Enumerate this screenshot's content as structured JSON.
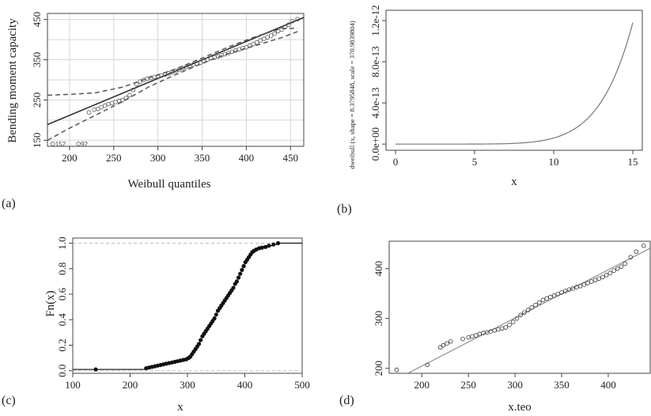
{
  "colors": {
    "ink": "#222222",
    "frame": "#444444",
    "grid": "#d6d6d6",
    "band": "#555555",
    "ecdf_ref": "#bdbdbd",
    "curve": "#777777"
  },
  "chart_data": [
    {
      "id": "a",
      "panel_label": "(a)",
      "type": "scatter",
      "xlabel": "Weibull quantiles",
      "ylabel": "Bending moment capacity",
      "xlim": [
        175,
        465
      ],
      "ylim": [
        135,
        465
      ],
      "xticks": [
        200,
        250,
        300,
        350,
        400,
        450
      ],
      "yticks": [
        150,
        250,
        350,
        450
      ],
      "grid": true,
      "annotations": [
        {
          "text": "152",
          "x": 181,
          "y": 141
        },
        {
          "text": "92",
          "x": 210,
          "y": 141
        }
      ],
      "reference_line": {
        "x": [
          175,
          465
        ],
        "y": [
          189,
          455
        ]
      },
      "confidence_band": {
        "x": [
          175,
          200,
          230,
          260,
          290,
          320,
          350,
          380,
          410,
          440,
          458
        ],
        "upper": [
          262,
          264,
          268,
          282,
          305,
          327,
          354,
          382,
          407,
          428,
          428
        ],
        "lower": [
          150,
          180,
          213,
          246,
          283,
          313,
          341,
          366,
          385,
          405,
          420
        ]
      },
      "points": {
        "x": [
          181,
          210,
          222,
          228,
          232,
          236,
          240,
          244,
          248,
          252,
          256,
          260,
          264,
          268,
          272,
          276,
          280,
          284,
          288,
          292,
          296,
          300,
          304,
          308,
          312,
          316,
          320,
          324,
          328,
          332,
          336,
          340,
          344,
          348,
          352,
          356,
          360,
          364,
          368,
          372,
          376,
          380,
          384,
          388,
          392,
          396,
          400,
          404,
          408,
          412,
          416,
          420,
          424,
          428,
          432,
          436,
          440,
          444,
          448,
          452,
          458
        ],
        "y": [
          141,
          141,
          219,
          226,
          228,
          232,
          236,
          240,
          242,
          245,
          248,
          250,
          255,
          262,
          275,
          289,
          296,
          300,
          303,
          305,
          307,
          309,
          311,
          313,
          316,
          319,
          322,
          325,
          329,
          332,
          335,
          338,
          341,
          343,
          346,
          350,
          354,
          356,
          358,
          361,
          364,
          367,
          370,
          373,
          376,
          379,
          381,
          385,
          389,
          393,
          398,
          402,
          406,
          410,
          415,
          421,
          425,
          431,
          437,
          446,
          451
        ]
      }
    },
    {
      "id": "b",
      "panel_label": "(b)",
      "type": "line",
      "xlabel": "x",
      "ylabel": "dweibull (x, shape = 8.3795848, scale = 370.9839804)",
      "xlim": [
        -0.6,
        15.6
      ],
      "ylim": [
        -6e-14,
        1.3e-12
      ],
      "xticks": [
        0,
        5,
        10,
        15
      ],
      "ytick_values": [
        0,
        4e-13,
        8e-13,
        1.2e-12
      ],
      "ytick_labels": [
        "0.0e+00",
        "4.0e-13",
        "8.0e-13",
        "1.2e-12"
      ],
      "grid": false,
      "function": {
        "name": "dweibull",
        "shape": 8.3795848,
        "scale": 370.9839804,
        "x_from": 0,
        "x_to": 15
      }
    },
    {
      "id": "c",
      "panel_label": "(c)",
      "type": "scatter",
      "xlabel": "x",
      "ylabel": "Fn(x)",
      "xlim": [
        100,
        500
      ],
      "ylim": [
        -0.02,
        1.04
      ],
      "xticks": [
        100,
        200,
        300,
        400,
        500
      ],
      "yticks": [
        0.0,
        0.2,
        0.4,
        0.6,
        0.8,
        1.0
      ],
      "ytick_labels": [
        "0.0",
        "0.2",
        "0.4",
        "0.6",
        "0.8",
        "1.0"
      ],
      "grid": false,
      "reference_lines_y": [
        0,
        1
      ],
      "ecdf_points": {
        "x": [
          140,
          228,
          233,
          238,
          243,
          248,
          253,
          258,
          263,
          268,
          273,
          278,
          283,
          288,
          293,
          298,
          302,
          305,
          308,
          311,
          314,
          317,
          320,
          323,
          326,
          329,
          332,
          335,
          338,
          341,
          344,
          347,
          350,
          353,
          356,
          359,
          362,
          365,
          368,
          371,
          374,
          377,
          380,
          383,
          386,
          389,
          392,
          395,
          398,
          401,
          404,
          407,
          410,
          413,
          416,
          420,
          425,
          430,
          436,
          442,
          450,
          458
        ],
        "y": [
          0.01,
          0.02,
          0.025,
          0.03,
          0.035,
          0.04,
          0.045,
          0.05,
          0.055,
          0.06,
          0.065,
          0.07,
          0.075,
          0.08,
          0.085,
          0.09,
          0.1,
          0.11,
          0.13,
          0.15,
          0.17,
          0.19,
          0.21,
          0.24,
          0.27,
          0.29,
          0.31,
          0.33,
          0.35,
          0.37,
          0.39,
          0.41,
          0.44,
          0.47,
          0.49,
          0.51,
          0.53,
          0.55,
          0.57,
          0.59,
          0.61,
          0.63,
          0.65,
          0.68,
          0.7,
          0.73,
          0.76,
          0.79,
          0.82,
          0.85,
          0.87,
          0.89,
          0.91,
          0.93,
          0.94,
          0.95,
          0.96,
          0.965,
          0.97,
          0.98,
          0.99,
          1.0
        ]
      }
    },
    {
      "id": "d",
      "panel_label": "(d)",
      "type": "scatter",
      "xlabel": "x.teo",
      "ylabel": "",
      "xlim": [
        165,
        445
      ],
      "ylim": [
        190,
        455
      ],
      "xticks": [
        200,
        250,
        300,
        350,
        400
      ],
      "yticks": [
        200,
        300,
        400
      ],
      "grid": false,
      "reference_line": {
        "x": [
          185,
          445
        ],
        "y": [
          190,
          441
        ]
      },
      "points": {
        "x": [
          173,
          206,
          220,
          223,
          227,
          231,
          244,
          250,
          254,
          258,
          262,
          266,
          270,
          274,
          278,
          282,
          286,
          290,
          294,
          298,
          302,
          306,
          310,
          314,
          318,
          322,
          326,
          330,
          334,
          338,
          342,
          346,
          350,
          354,
          358,
          362,
          366,
          370,
          374,
          378,
          382,
          386,
          390,
          394,
          398,
          402,
          406,
          410,
          414,
          418,
          424,
          430,
          438
        ],
        "y": [
          197,
          207,
          242,
          246,
          250,
          254,
          259,
          262,
          264,
          266,
          269,
          271,
          272,
          274,
          276,
          278,
          280,
          282,
          287,
          293,
          300,
          307,
          312,
          317,
          322,
          327,
          332,
          337,
          340,
          343,
          346,
          349,
          352,
          355,
          358,
          360,
          363,
          365,
          368,
          371,
          374,
          377,
          380,
          383,
          387,
          391,
          396,
          400,
          404,
          410,
          423,
          434,
          446
        ]
      }
    }
  ]
}
